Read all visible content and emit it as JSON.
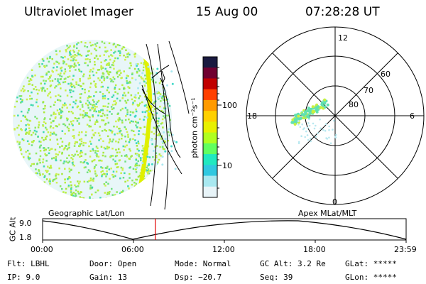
{
  "header": {
    "instrument": "Ultraviolet Imager",
    "date": "15 Aug 00",
    "time": "07:28:28 UT"
  },
  "colorbar": {
    "unit_label": "photon cm⁻²s⁻¹",
    "ticks": [
      "100",
      "10"
    ],
    "colors": [
      "#1a1a40",
      "#700030",
      "#c00000",
      "#ff4000",
      "#ff9a00",
      "#ffd000",
      "#e8f000",
      "#b0ff20",
      "#60ff60",
      "#20e8c0",
      "#30c8e0",
      "#a8e8f0",
      "#e8f4f8"
    ]
  },
  "polar_plot": {
    "mlt_labels": {
      "top": "12",
      "left": "18",
      "right": "6",
      "bottom": "0"
    },
    "lat_labels": [
      "60",
      "70",
      "80"
    ]
  },
  "timeline": {
    "left_label": "Geographic Lat/Lon",
    "right_label": "Apex MLat/MLT",
    "axis_title": "GC Alt",
    "y_ticks": [
      "9.0",
      "1.8"
    ],
    "x_ticks": [
      "00:00",
      "06:00",
      "12:00",
      "18:00",
      "23:59"
    ],
    "current_time_fraction": 0.31
  },
  "info": {
    "filter": "Flt: LBHL",
    "ip": "IP:  9.0",
    "door": "Door: Open",
    "gain": "Gain: 13",
    "mode": "Mode: Normal",
    "dsp": "Dsp:  −20.7",
    "gc_alt": "GC Alt: 3.2 Re",
    "seq": "Seq: 39",
    "glat": "GLat: *****",
    "glon": "GLon: *****"
  }
}
